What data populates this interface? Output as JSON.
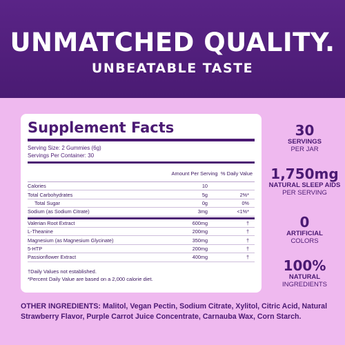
{
  "banner": {
    "headline": "UNMATCHED QUALITY.",
    "subline": "UNBEATABLE TASTE"
  },
  "facts": {
    "title": "Supplement Facts",
    "serving_size": "Serving Size: 2 Gummies (6g)",
    "servings_per_container": "Servings Per Container: 30",
    "col_amount": "Amount Per Serving",
    "col_dv": "% Daily Value",
    "rows_a": [
      {
        "name": "Calories",
        "amount": "10",
        "dv": ""
      },
      {
        "name": "Total Carbohydrates",
        "amount": "5g",
        "dv": "2%*"
      },
      {
        "name": "Total Sugar",
        "amount": "0g",
        "dv": "0%",
        "indent": true
      },
      {
        "name": "Sodium (as Sodium Citrate)",
        "amount": "3mg",
        "dv": "<1%*"
      }
    ],
    "rows_b": [
      {
        "name": "Valerian Root Extract",
        "amount": "600mg",
        "dv": "†"
      },
      {
        "name": "L-Theanine",
        "amount": "200mg",
        "dv": "†"
      },
      {
        "name": "Magnesium (as Magnesium Glycinate)",
        "amount": "350mg",
        "dv": "†"
      },
      {
        "name": "5-HTP",
        "amount": "200mg",
        "dv": "†"
      },
      {
        "name": "Passionflower Extract",
        "amount": "400mg",
        "dv": "†"
      }
    ],
    "footnote_1": "†Daily Values not established.",
    "footnote_2": "*Percent Daily Value are based on a 2,000 calorie diet."
  },
  "stats": [
    {
      "big": "30",
      "label": "SERVINGS",
      "sub": "PER JAR"
    },
    {
      "big": "1,750mg",
      "label": "NATURAL SLEEP AIDS",
      "sub": "PER SERVING"
    },
    {
      "big": "0",
      "label": "ARTIFICIAL",
      "sub": "COLORS"
    },
    {
      "big": "100%",
      "label": "NATURAL",
      "sub": "INGREDIENTS"
    }
  ],
  "ingredients": "OTHER INGREDIENTS: Malitol, Vegan Pectin, Sodium Citrate, Xylitol, Citric Acid, Natural Strawberry Flavor, Purple Carrot Juice Concentrate, Carnauba Wax, Corn Starch."
}
